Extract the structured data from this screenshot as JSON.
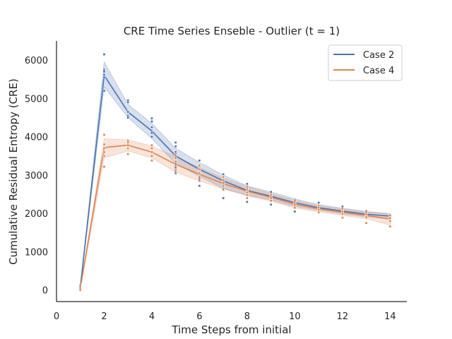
{
  "chart_data": {
    "type": "line",
    "title": "CRE Time Series Enseble - Outlier (t = 1)",
    "xlabel": "Time Steps from initial",
    "ylabel": "Cumulative Residual Entropy (CRE)",
    "xlim": [
      0,
      14.7
    ],
    "ylim": [
      -300,
      6500
    ],
    "xticks": [
      0,
      2,
      4,
      6,
      8,
      10,
      12,
      14
    ],
    "yticks": [
      0,
      1000,
      2000,
      3000,
      4000,
      5000,
      6000
    ],
    "grid": false,
    "legend_position": "top-right",
    "x": [
      1,
      2,
      3,
      4,
      5,
      6,
      7,
      8,
      9,
      10,
      11,
      12,
      13,
      14
    ],
    "series": [
      {
        "name": "Case 2",
        "color": "#4c72b0",
        "mean": [
          80,
          5600,
          4650,
          4150,
          3500,
          3150,
          2850,
          2600,
          2450,
          2280,
          2150,
          2060,
          1980,
          1930
        ],
        "ci_low": [
          40,
          5300,
          4500,
          3950,
          3300,
          2970,
          2650,
          2480,
          2350,
          2180,
          2080,
          1990,
          1910,
          1860
        ],
        "ci_high": [
          120,
          5950,
          4850,
          4350,
          3700,
          3330,
          3000,
          2720,
          2560,
          2380,
          2230,
          2140,
          2050,
          2000
        ],
        "points": [
          [
            1,
            40
          ],
          [
            1,
            80
          ],
          [
            1,
            120
          ],
          [
            2,
            6150
          ],
          [
            2,
            5750
          ],
          [
            2,
            5700
          ],
          [
            2,
            5620
          ],
          [
            2,
            5550
          ],
          [
            2,
            5200
          ],
          [
            3,
            4950
          ],
          [
            3,
            4900
          ],
          [
            3,
            4650
          ],
          [
            3,
            4550
          ],
          [
            3,
            4500
          ],
          [
            4,
            4480
          ],
          [
            4,
            4400
          ],
          [
            4,
            4250
          ],
          [
            4,
            4100
          ],
          [
            4,
            4000
          ],
          [
            5,
            3850
          ],
          [
            5,
            3750
          ],
          [
            5,
            3600
          ],
          [
            5,
            3450
          ],
          [
            5,
            3300
          ],
          [
            5,
            3200
          ],
          [
            5,
            3050
          ],
          [
            6,
            3380
          ],
          [
            6,
            3250
          ],
          [
            6,
            3150
          ],
          [
            6,
            3050
          ],
          [
            6,
            2900
          ],
          [
            6,
            2720
          ],
          [
            7,
            3020
          ],
          [
            7,
            2950
          ],
          [
            7,
            2850
          ],
          [
            7,
            2750
          ],
          [
            7,
            2650
          ],
          [
            7,
            2400
          ],
          [
            8,
            2770
          ],
          [
            8,
            2650
          ],
          [
            8,
            2580
          ],
          [
            8,
            2500
          ],
          [
            8,
            2300
          ],
          [
            9,
            2560
          ],
          [
            9,
            2500
          ],
          [
            9,
            2450
          ],
          [
            9,
            2380
          ],
          [
            9,
            2230
          ],
          [
            10,
            2360
          ],
          [
            10,
            2300
          ],
          [
            10,
            2250
          ],
          [
            10,
            2180
          ],
          [
            10,
            2050
          ],
          [
            11,
            2280
          ],
          [
            11,
            2200
          ],
          [
            11,
            2150
          ],
          [
            11,
            2080
          ],
          [
            12,
            2180
          ],
          [
            12,
            2120
          ],
          [
            12,
            2060
          ],
          [
            12,
            2000
          ],
          [
            13,
            2060
          ],
          [
            13,
            2010
          ],
          [
            13,
            1960
          ],
          [
            13,
            1900
          ],
          [
            14,
            1960
          ],
          [
            14,
            1920
          ],
          [
            14,
            1880
          ]
        ]
      },
      {
        "name": "Case 4",
        "color": "#dd8452",
        "mean": [
          50,
          3720,
          3780,
          3600,
          3280,
          3020,
          2780,
          2580,
          2420,
          2240,
          2120,
          2030,
          1950,
          1850
        ],
        "ci_low": [
          20,
          3450,
          3630,
          3450,
          3080,
          2850,
          2640,
          2460,
          2320,
          2140,
          2040,
          1950,
          1860,
          1700
        ],
        "ci_high": [
          80,
          3950,
          3920,
          3760,
          3480,
          3200,
          2920,
          2700,
          2520,
          2340,
          2200,
          2110,
          2040,
          1980
        ],
        "points": [
          [
            1,
            0
          ],
          [
            1,
            50
          ],
          [
            1,
            90
          ],
          [
            2,
            4050
          ],
          [
            2,
            3800
          ],
          [
            2,
            3700
          ],
          [
            2,
            3600
          ],
          [
            2,
            3500
          ],
          [
            2,
            3220
          ],
          [
            3,
            3900
          ],
          [
            3,
            3850
          ],
          [
            3,
            3780
          ],
          [
            3,
            3700
          ],
          [
            3,
            3550
          ],
          [
            4,
            3780
          ],
          [
            4,
            3700
          ],
          [
            4,
            3600
          ],
          [
            4,
            3500
          ],
          [
            4,
            3380
          ],
          [
            5,
            3550
          ],
          [
            5,
            3450
          ],
          [
            5,
            3350
          ],
          [
            5,
            3250
          ],
          [
            5,
            3150
          ],
          [
            5,
            3100
          ],
          [
            6,
            3250
          ],
          [
            6,
            3150
          ],
          [
            6,
            3050
          ],
          [
            6,
            2950
          ],
          [
            6,
            2850
          ],
          [
            7,
            2950
          ],
          [
            7,
            2880
          ],
          [
            7,
            2800
          ],
          [
            7,
            2720
          ],
          [
            7,
            2620
          ],
          [
            8,
            2700
          ],
          [
            8,
            2620
          ],
          [
            8,
            2550
          ],
          [
            8,
            2480
          ],
          [
            8,
            2400
          ],
          [
            9,
            2500
          ],
          [
            9,
            2450
          ],
          [
            9,
            2400
          ],
          [
            9,
            2330
          ],
          [
            10,
            2330
          ],
          [
            10,
            2270
          ],
          [
            10,
            2220
          ],
          [
            10,
            2150
          ],
          [
            11,
            2200
          ],
          [
            11,
            2150
          ],
          [
            11,
            2100
          ],
          [
            11,
            2030
          ],
          [
            12,
            2120
          ],
          [
            12,
            2050
          ],
          [
            12,
            1990
          ],
          [
            12,
            1890
          ],
          [
            13,
            2030
          ],
          [
            13,
            1970
          ],
          [
            13,
            1900
          ],
          [
            13,
            1750
          ],
          [
            14,
            1950
          ],
          [
            14,
            1880
          ],
          [
            14,
            1800
          ],
          [
            14,
            1660
          ]
        ]
      }
    ]
  }
}
